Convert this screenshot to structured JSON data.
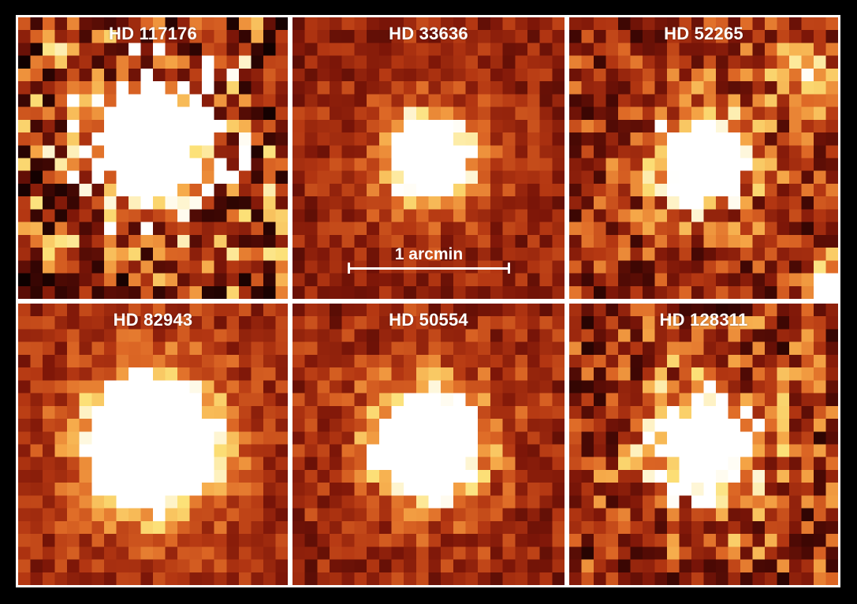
{
  "figure": {
    "background": "#000000",
    "separator_color": "#ffffff",
    "colormap": "hot",
    "panels": [
      {
        "label": "HD 117176",
        "source_size": 0.85,
        "source_brightness": 1.7,
        "noise": 0.95,
        "texture": "diagonal",
        "extra_sources": []
      },
      {
        "label": "HD 33636",
        "source_size": 0.5,
        "source_brightness": 1.6,
        "noise": 0.35,
        "texture": "grid",
        "extra_sources": []
      },
      {
        "label": "HD 52265",
        "source_size": 0.55,
        "source_brightness": 1.5,
        "noise": 0.65,
        "texture": "grid",
        "extra_sources": [
          "upper-right",
          "lower-right-corner"
        ]
      },
      {
        "label": "HD 82943",
        "source_size": 1.0,
        "source_brightness": 1.8,
        "noise": 0.35,
        "texture": "diagonal",
        "extra_sources": []
      },
      {
        "label": "HD 50554",
        "source_size": 0.75,
        "source_brightness": 1.55,
        "noise": 0.4,
        "texture": "grid",
        "extra_sources": []
      },
      {
        "label": "HD 128311",
        "source_size": 0.7,
        "source_brightness": 1.3,
        "noise": 0.75,
        "texture": "grid",
        "extra_sources": []
      }
    ]
  },
  "scalebar": {
    "label": "1 arcmin"
  }
}
